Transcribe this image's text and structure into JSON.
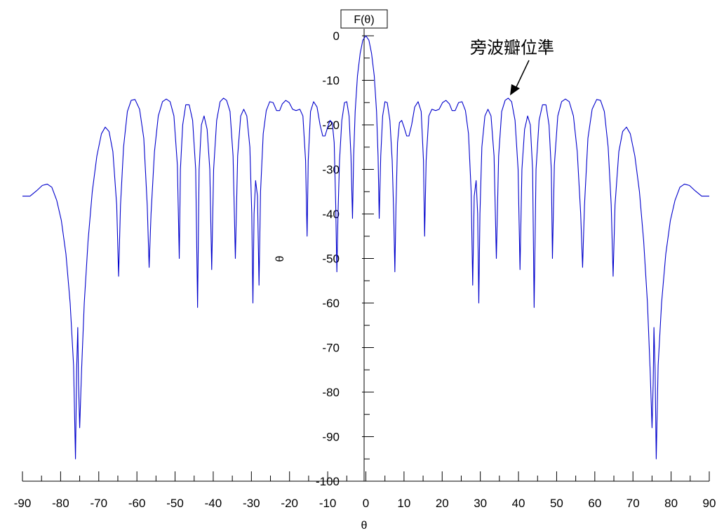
{
  "chart_data": {
    "type": "line",
    "title": "",
    "xlabel": "θ",
    "ylabel": "F(θ)",
    "y_side_label": "θ",
    "xlim": [
      -90,
      90
    ],
    "ylim": [
      -100,
      0
    ],
    "x_ticks": [
      -90,
      -80,
      -70,
      -60,
      -50,
      -40,
      -30,
      -20,
      -10,
      0,
      10,
      20,
      30,
      40,
      50,
      60,
      70,
      80,
      90
    ],
    "y_ticks": [
      0,
      -10,
      -20,
      -30,
      -40,
      -50,
      -60,
      -70,
      -80,
      -90,
      -100
    ],
    "grid": false,
    "line_color": "#0000cc",
    "symmetric": true,
    "series": [
      {
        "half_points": [
          [
            0,
            0
          ],
          [
            0.8,
            -1
          ],
          [
            1.5,
            -4
          ],
          [
            2.2,
            -9
          ],
          [
            2.8,
            -17
          ],
          [
            3.2,
            -27
          ],
          [
            3.5,
            -41
          ],
          [
            3.9,
            -27
          ],
          [
            4.4,
            -18
          ],
          [
            5,
            -14.8
          ],
          [
            5.6,
            -15
          ],
          [
            6.3,
            -19
          ],
          [
            6.9,
            -28
          ],
          [
            7.3,
            -40
          ],
          [
            7.6,
            -53
          ],
          [
            7.9,
            -38
          ],
          [
            8.3,
            -24
          ],
          [
            8.8,
            -19.5
          ],
          [
            9.4,
            -19
          ],
          [
            10,
            -20.5
          ],
          [
            10.7,
            -22.5
          ],
          [
            11.3,
            -22.5
          ],
          [
            12,
            -20
          ],
          [
            12.8,
            -16
          ],
          [
            13.7,
            -14.8
          ],
          [
            14.5,
            -17
          ],
          [
            15.1,
            -28
          ],
          [
            15.4,
            -45
          ],
          [
            15.8,
            -28
          ],
          [
            16.5,
            -18
          ],
          [
            17.3,
            -16.5
          ],
          [
            18.3,
            -16.8
          ],
          [
            19.2,
            -16.5
          ],
          [
            20.1,
            -15
          ],
          [
            21,
            -14.5
          ],
          [
            21.9,
            -15.3
          ],
          [
            22.6,
            -16.8
          ],
          [
            23.4,
            -16.8
          ],
          [
            24.3,
            -15
          ],
          [
            25.2,
            -14.8
          ],
          [
            26.1,
            -16.8
          ],
          [
            26.9,
            -22
          ],
          [
            27.6,
            -35
          ],
          [
            28,
            -56
          ],
          [
            28.4,
            -36
          ],
          [
            28.9,
            -32.5
          ],
          [
            29.3,
            -40
          ],
          [
            29.6,
            -60
          ],
          [
            29.9,
            -40
          ],
          [
            30.4,
            -25
          ],
          [
            31.2,
            -18
          ],
          [
            32,
            -16.5
          ],
          [
            32.8,
            -18
          ],
          [
            33.6,
            -27
          ],
          [
            34.2,
            -50
          ],
          [
            34.8,
            -27
          ],
          [
            35.6,
            -17
          ],
          [
            36.5,
            -14.5
          ],
          [
            37.3,
            -14
          ],
          [
            38.2,
            -14.8
          ],
          [
            39.1,
            -19
          ],
          [
            39.9,
            -30
          ],
          [
            40.4,
            -52.5
          ],
          [
            40.9,
            -30
          ],
          [
            41.6,
            -21
          ],
          [
            42.4,
            -18
          ],
          [
            43.1,
            -20
          ],
          [
            43.7,
            -30
          ],
          [
            44.1,
            -61
          ],
          [
            44.6,
            -30
          ],
          [
            45.4,
            -19
          ],
          [
            46.3,
            -15.5
          ],
          [
            47.2,
            -15.5
          ],
          [
            48,
            -20
          ],
          [
            48.6,
            -30
          ],
          [
            48.9,
            -50
          ],
          [
            49.4,
            -29
          ],
          [
            50.3,
            -18
          ],
          [
            51.3,
            -14.8
          ],
          [
            52.3,
            -14.2
          ],
          [
            53.3,
            -14.8
          ],
          [
            54.4,
            -18
          ],
          [
            55.4,
            -26
          ],
          [
            56.3,
            -40
          ],
          [
            56.8,
            -52
          ],
          [
            57.3,
            -38
          ],
          [
            58.2,
            -23
          ],
          [
            59.3,
            -16.5
          ],
          [
            60.5,
            -14.3
          ],
          [
            61.5,
            -14.5
          ],
          [
            62.5,
            -17
          ],
          [
            63.5,
            -25
          ],
          [
            64.3,
            -38
          ],
          [
            64.8,
            -54
          ],
          [
            65.3,
            -38
          ],
          [
            66.3,
            -26
          ],
          [
            67.3,
            -21.5
          ],
          [
            68.3,
            -20.5
          ],
          [
            69.3,
            -22
          ],
          [
            70.5,
            -27
          ],
          [
            71.7,
            -35
          ],
          [
            72.8,
            -46
          ],
          [
            73.8,
            -60
          ],
          [
            74.5,
            -75
          ],
          [
            75,
            -88
          ],
          [
            75.3,
            -78
          ],
          [
            75.5,
            -65.5
          ],
          [
            75.8,
            -75
          ],
          [
            76.1,
            -95
          ],
          [
            76.6,
            -74
          ],
          [
            77.5,
            -60
          ],
          [
            78.6,
            -49
          ],
          [
            79.8,
            -41.5
          ],
          [
            81,
            -37
          ],
          [
            82.3,
            -34
          ],
          [
            83.5,
            -33.3
          ],
          [
            84.8,
            -33.6
          ],
          [
            86.3,
            -34.8
          ],
          [
            88,
            -36
          ],
          [
            90,
            -36
          ]
        ]
      }
    ],
    "annotations": [
      {
        "text": "旁波瓣位準",
        "x": 37,
        "y": -14
      }
    ]
  }
}
